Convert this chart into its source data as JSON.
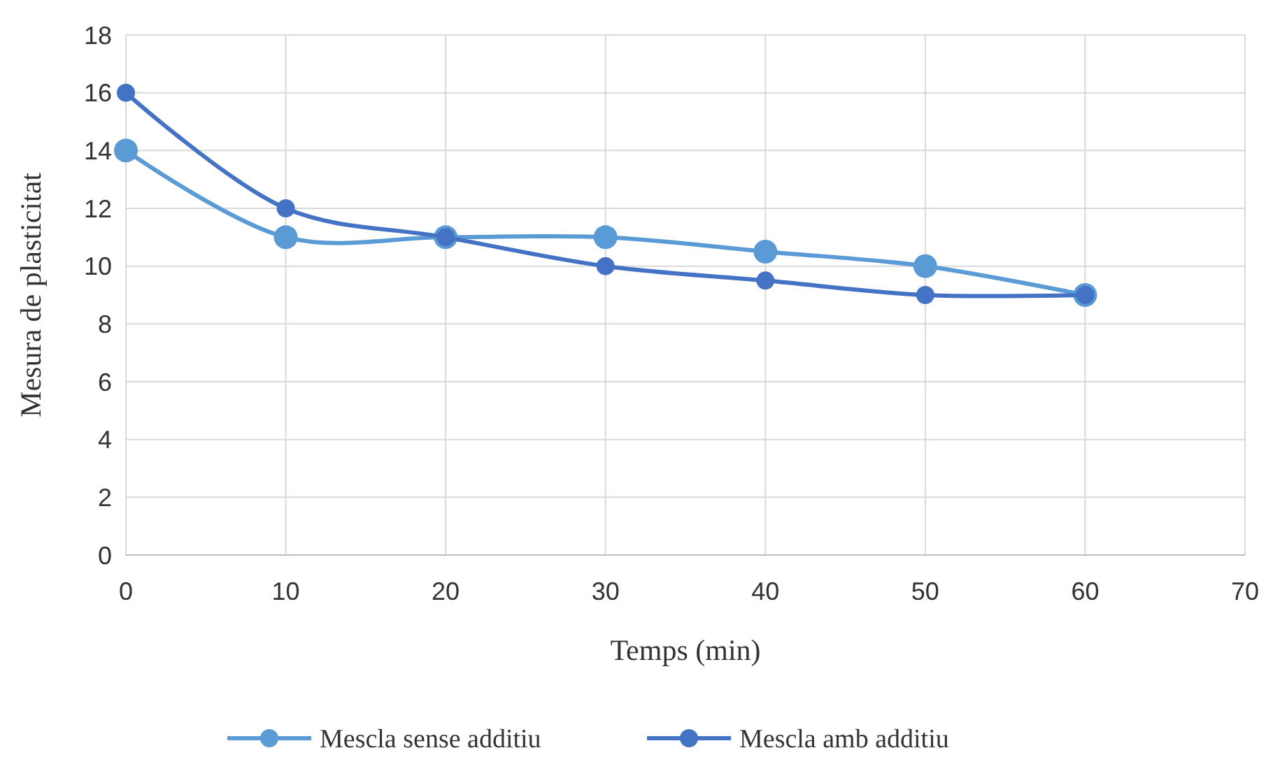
{
  "chart_data": {
    "type": "line",
    "xlabel": "Temps (min)",
    "ylabel": "Mesura de plasticitat",
    "x": [
      0,
      10,
      20,
      30,
      40,
      50,
      60
    ],
    "series": [
      {
        "name": "Mescla sense additiu",
        "color": "#5b9bd5",
        "values": [
          14,
          11,
          11,
          11,
          10.5,
          10,
          9
        ]
      },
      {
        "name": "Mescla amb additiu",
        "color": "#4472c4",
        "values": [
          16,
          12,
          11,
          10,
          9.5,
          9,
          9
        ]
      }
    ],
    "xlim": [
      0,
      70
    ],
    "xticks": [
      0,
      10,
      20,
      30,
      40,
      50,
      60,
      70
    ],
    "ylim": [
      0,
      18
    ],
    "yticks": [
      0,
      2,
      4,
      6,
      8,
      10,
      12,
      14,
      16,
      18
    ],
    "grid": true,
    "legend": "bottom",
    "marker": "circle",
    "line_style": "solid"
  }
}
